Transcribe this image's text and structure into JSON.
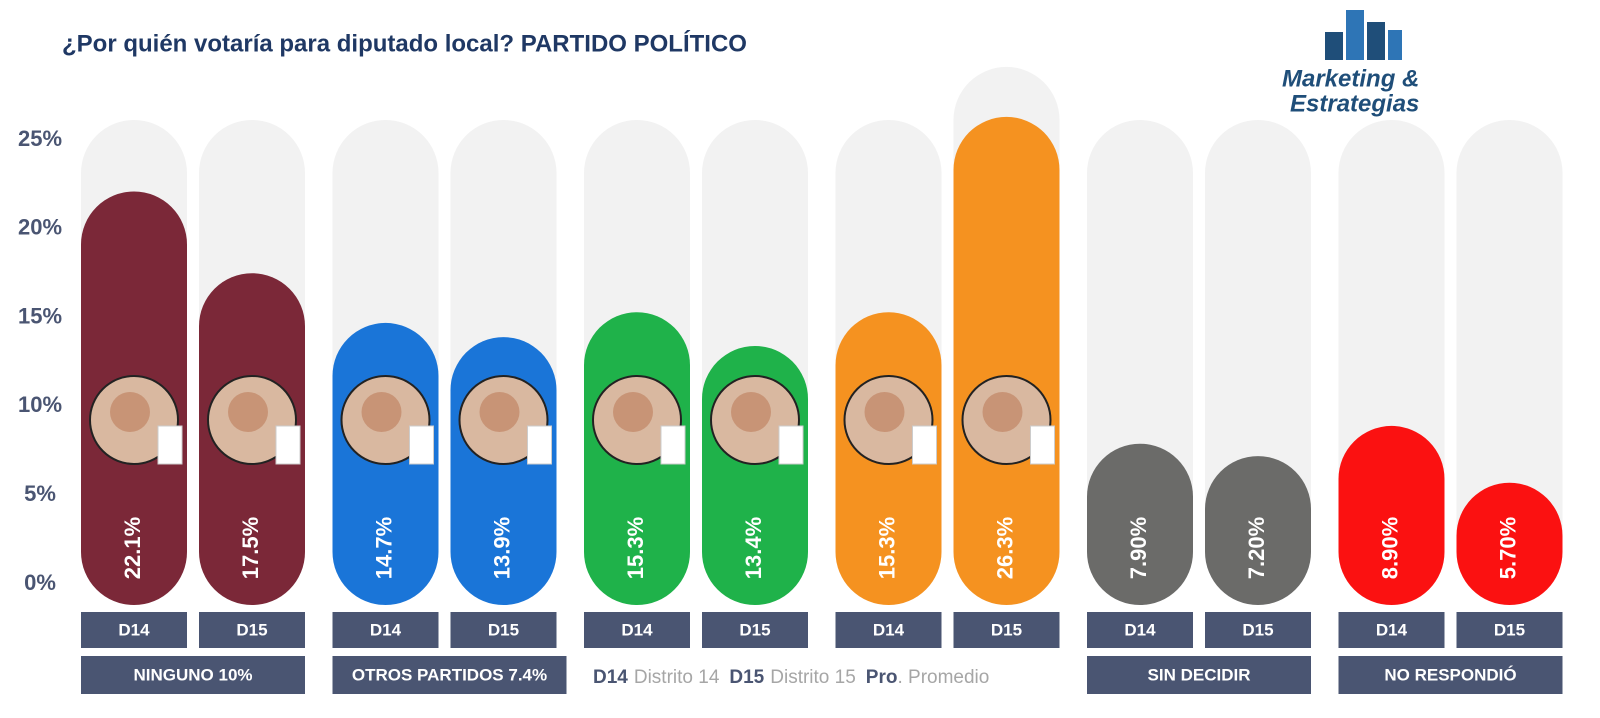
{
  "chart_data": {
    "type": "bar",
    "title": "¿Por quién votaría para diputado local? PARTIDO POLÍTICO",
    "logo": [
      "Marketing &",
      "Estrategias"
    ],
    "ylim": [
      0,
      25
    ],
    "yticks": [
      {
        "value": 0,
        "label": "0%"
      },
      {
        "value": 5,
        "label": "5%"
      },
      {
        "value": 10,
        "label": "10%"
      },
      {
        "value": 15,
        "label": "15%"
      },
      {
        "value": 20,
        "label": "20%"
      },
      {
        "value": 25,
        "label": "25%"
      }
    ],
    "categories": [
      "D14",
      "D15"
    ],
    "groups": [
      {
        "color": "#7b2838",
        "values": [
          22.1,
          17.5
        ],
        "value_labels": [
          "22.1%",
          "17.5%"
        ]
      },
      {
        "color": "#1a75d8",
        "values": [
          14.7,
          13.9
        ],
        "value_labels": [
          "14.7%",
          "13.9%"
        ]
      },
      {
        "color": "#1fb24a",
        "values": [
          15.3,
          13.4
        ],
        "value_labels": [
          "15.3%",
          "13.4%"
        ]
      },
      {
        "color": "#f59220",
        "values": [
          15.3,
          26.3
        ],
        "value_labels": [
          "15.3%",
          "26.3%"
        ]
      },
      {
        "color": "#6b6b69",
        "values": [
          7.9,
          7.2
        ],
        "value_labels": [
          "7.90%",
          "7.20%"
        ]
      },
      {
        "color": "#fb1111",
        "values": [
          8.9,
          5.7
        ],
        "value_labels": [
          "8.90%",
          "5.70%"
        ]
      }
    ],
    "footer_labels": [
      "NINGUNO 10%",
      "OTROS PARTIDOS 7.4%",
      "SIN DECIDIR",
      "NO RESPONDIÓ"
    ],
    "legend": [
      {
        "code": "D14",
        "text": "Distrito 14"
      },
      {
        "code": "D15",
        "text": "Distrito 15"
      },
      {
        "code": "Pro",
        "text": ". Promedio"
      }
    ]
  }
}
